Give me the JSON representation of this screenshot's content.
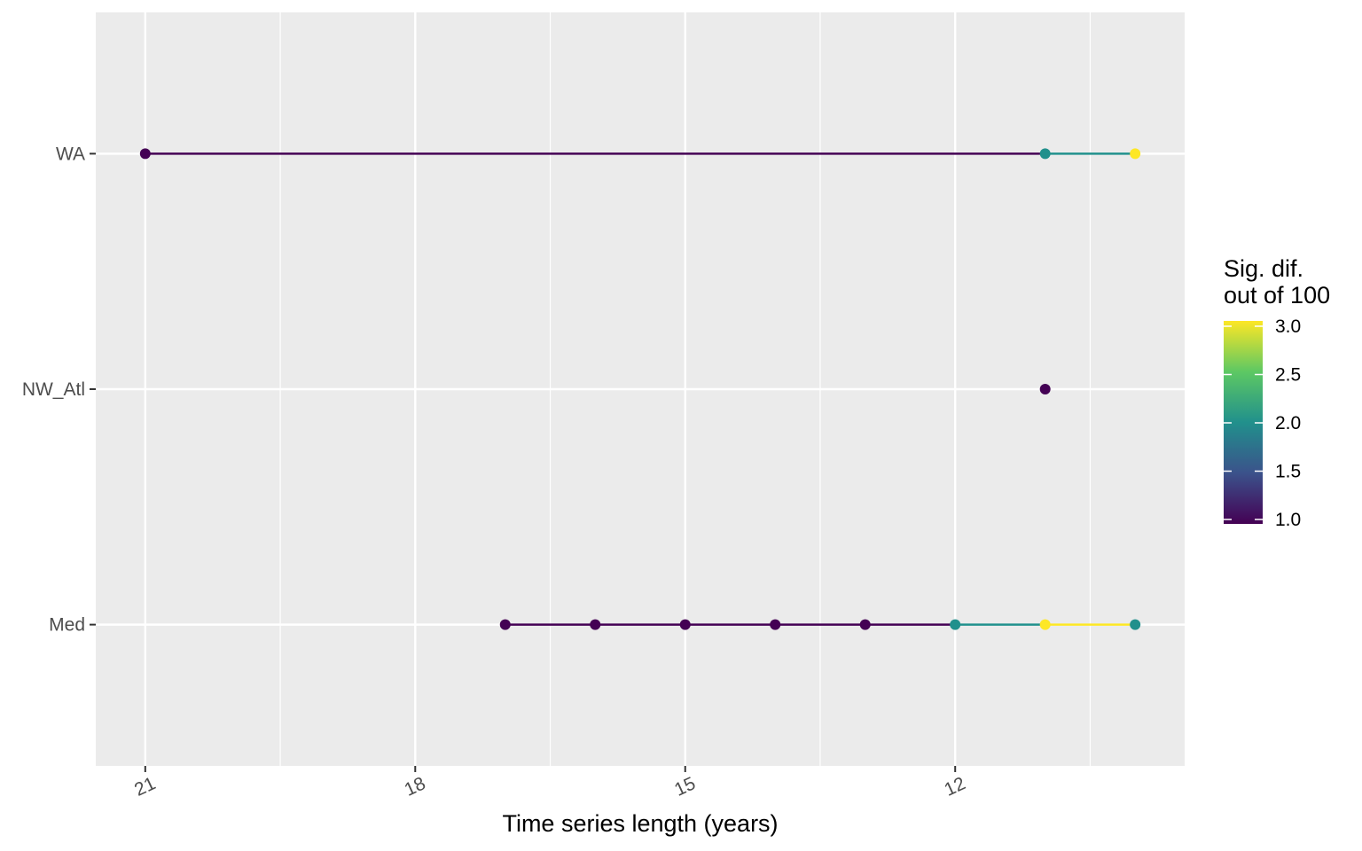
{
  "chart_data": {
    "type": "line",
    "title": "",
    "xlabel": "Time series length (years)",
    "ylabel": "",
    "x_reversed": true,
    "xlim": [
      21.55,
      9.45
    ],
    "x_ticks": [
      21,
      18,
      15,
      12
    ],
    "y_categories": [
      "Med",
      "NW_Atl",
      "WA"
    ],
    "grid": true,
    "legend": {
      "title_lines": [
        "Sig. dif.",
        "out of 100"
      ],
      "position": "right",
      "type": "colorbar",
      "range": [
        1.0,
        3.0
      ],
      "ticks": [
        "1.0",
        "1.5",
        "2.0",
        "2.5",
        "3.0"
      ],
      "palette": [
        "#440154",
        "#3b528b",
        "#21908c",
        "#5dc863",
        "#fde725"
      ]
    },
    "series": [
      {
        "name": "WA",
        "points": [
          {
            "x": 21,
            "value": 1
          },
          {
            "x": 11,
            "value": 2
          },
          {
            "x": 10,
            "value": 3
          }
        ]
      },
      {
        "name": "NW_Atl",
        "points": [
          {
            "x": 11,
            "value": 1
          }
        ]
      },
      {
        "name": "Med",
        "points": [
          {
            "x": 17,
            "value": 1
          },
          {
            "x": 16,
            "value": 1
          },
          {
            "x": 15,
            "value": 1
          },
          {
            "x": 14,
            "value": 1
          },
          {
            "x": 13,
            "value": 1
          },
          {
            "x": 12,
            "value": 2
          },
          {
            "x": 11,
            "value": 3
          },
          {
            "x": 10,
            "value": 2
          }
        ]
      }
    ]
  }
}
